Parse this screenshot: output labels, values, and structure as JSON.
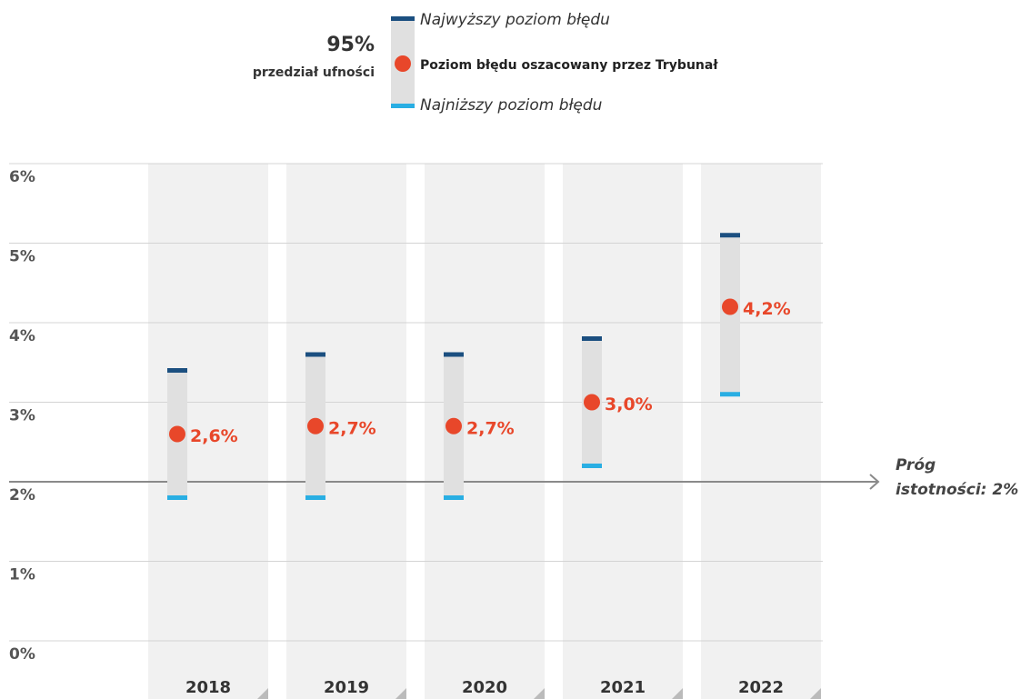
{
  "chart_data": {
    "type": "errorbar",
    "legend": {
      "confidence": "95%",
      "confidence_label": "przedział ufności"
    },
    "categories": [
      "2018",
      "2019",
      "2020",
      "2021",
      "2022"
    ],
    "series": [
      {
        "name": "Najwyższy poziom błędu",
        "color": "#1b4f80",
        "values": [
          3.4,
          3.6,
          3.6,
          3.8,
          5.1
        ]
      },
      {
        "name": "Poziom błędu oszacowany przez Trybunał",
        "color": "#e8472a",
        "values": [
          2.6,
          2.7,
          2.7,
          3.0,
          4.2
        ],
        "value_labels": [
          "2,6%",
          "2,7%",
          "2,7%",
          "3,0%",
          "4,2%"
        ]
      },
      {
        "name": "Najniższy poziom błędu",
        "color": "#29aee3",
        "values": [
          1.8,
          1.8,
          1.8,
          2.2,
          3.1
        ]
      }
    ],
    "threshold": {
      "value": 2,
      "label": [
        "Próg",
        "istotności: 2%"
      ]
    },
    "ylim": [
      0,
      6
    ],
    "yticks": [
      {
        "value": 0,
        "label": "0%"
      },
      {
        "value": 1,
        "label": "1%"
      },
      {
        "value": 2,
        "label": "2%"
      },
      {
        "value": 3,
        "label": "3%"
      },
      {
        "value": 4,
        "label": "4%"
      },
      {
        "value": 5,
        "label": "5%"
      },
      {
        "value": 6,
        "label": "6%"
      }
    ],
    "grid": true
  }
}
